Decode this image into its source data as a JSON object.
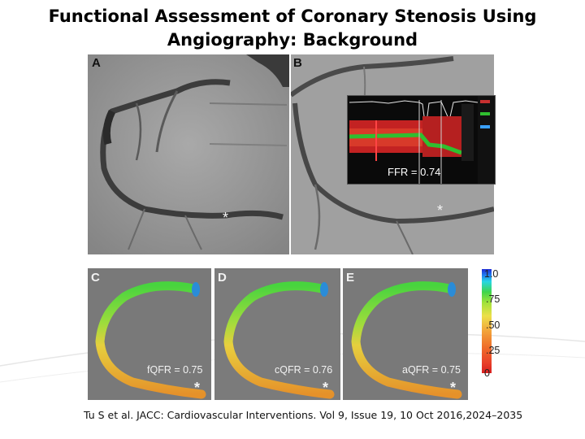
{
  "title": {
    "line1": "Functional Assessment of Coronary Stenosis Using",
    "line2": "Angiography: Background"
  },
  "panels": {
    "a": {
      "letter": "A",
      "star": "*"
    },
    "b": {
      "letter": "B",
      "star": "*",
      "ffr": "FFR = 0.74"
    },
    "c": {
      "letter": "C",
      "star": "*",
      "qfr": "fQFR = 0.75"
    },
    "d": {
      "letter": "D",
      "star": "*",
      "qfr": "cQFR = 0.76"
    },
    "e": {
      "letter": "E",
      "star": "*",
      "qfr": "aQFR = 0.75"
    }
  },
  "colorbar": {
    "ticks": [
      "1.0",
      ".75",
      ".50",
      ".25",
      "0"
    ]
  },
  "citation": "Tu S et al. JACC: Cardiovascular Interventions. Vol 9, Issue 19, 10 Oct 2016,2024–2035",
  "colors": {
    "angio_bg": "#9a9a9a",
    "qfr_bg": "#7a7a7a",
    "vessel_green": "#46d33e",
    "vessel_yellow": "#e8d040",
    "vessel_orange": "#e69a2c"
  }
}
